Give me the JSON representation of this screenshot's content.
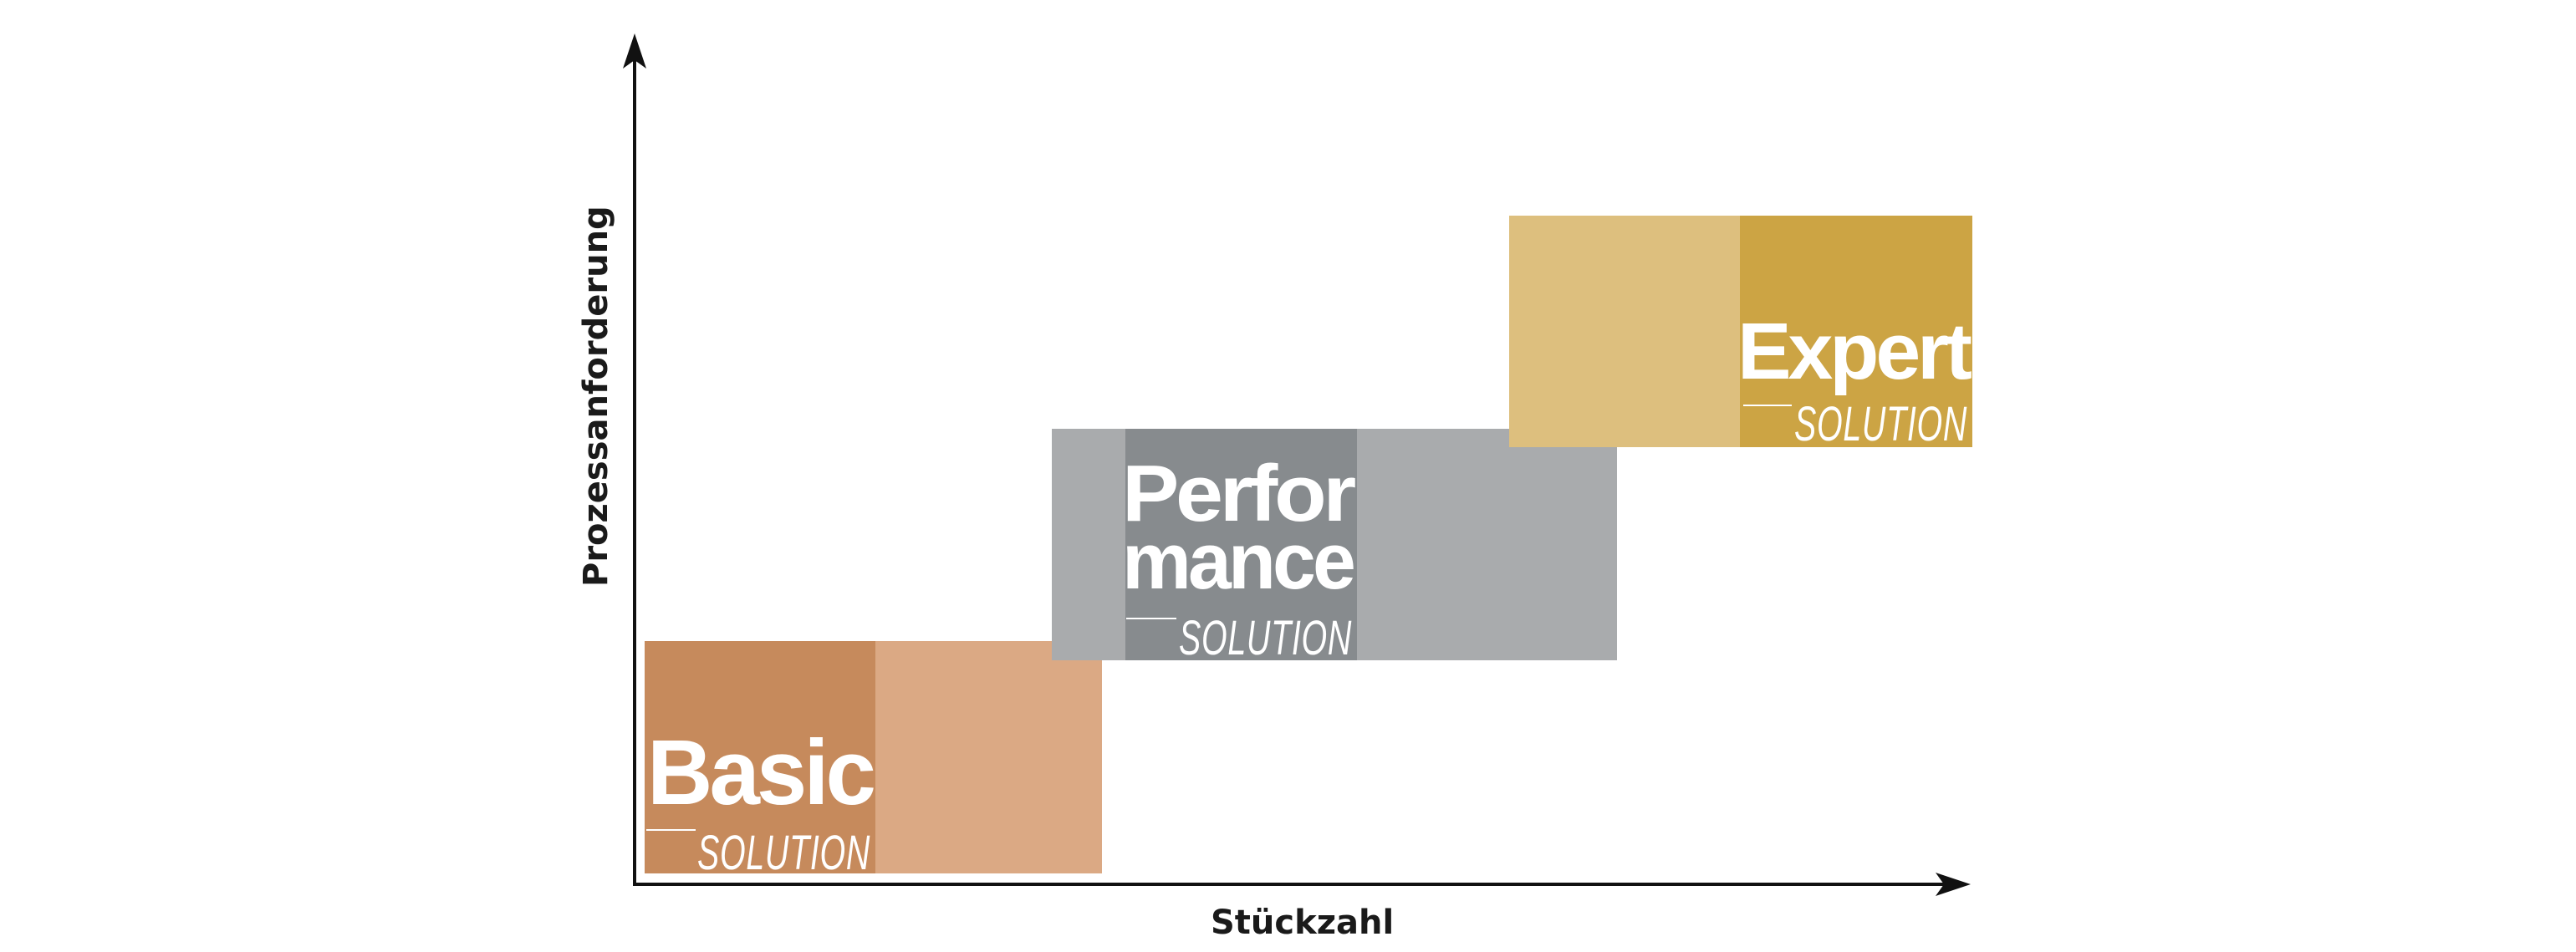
{
  "axes": {
    "x_label": "Stückzahl",
    "y_label": "Prozessanforderung"
  },
  "solutions": [
    {
      "id": "basic",
      "title_lines": [
        "Basic"
      ],
      "subtitle": "SOLUTION",
      "colors": {
        "dark": "#c68a5c",
        "light": "#dba984"
      }
    },
    {
      "id": "performance",
      "title_lines": [
        "Perfor",
        "mance"
      ],
      "subtitle": "SOLUTION",
      "colors": {
        "dark": "#878b8e",
        "light": "#a9abad"
      }
    },
    {
      "id": "expert",
      "title_lines": [
        "Expert"
      ],
      "subtitle": "SOLUTION",
      "colors": {
        "dark": "#cca444",
        "light": "#ddbf7e"
      }
    }
  ]
}
